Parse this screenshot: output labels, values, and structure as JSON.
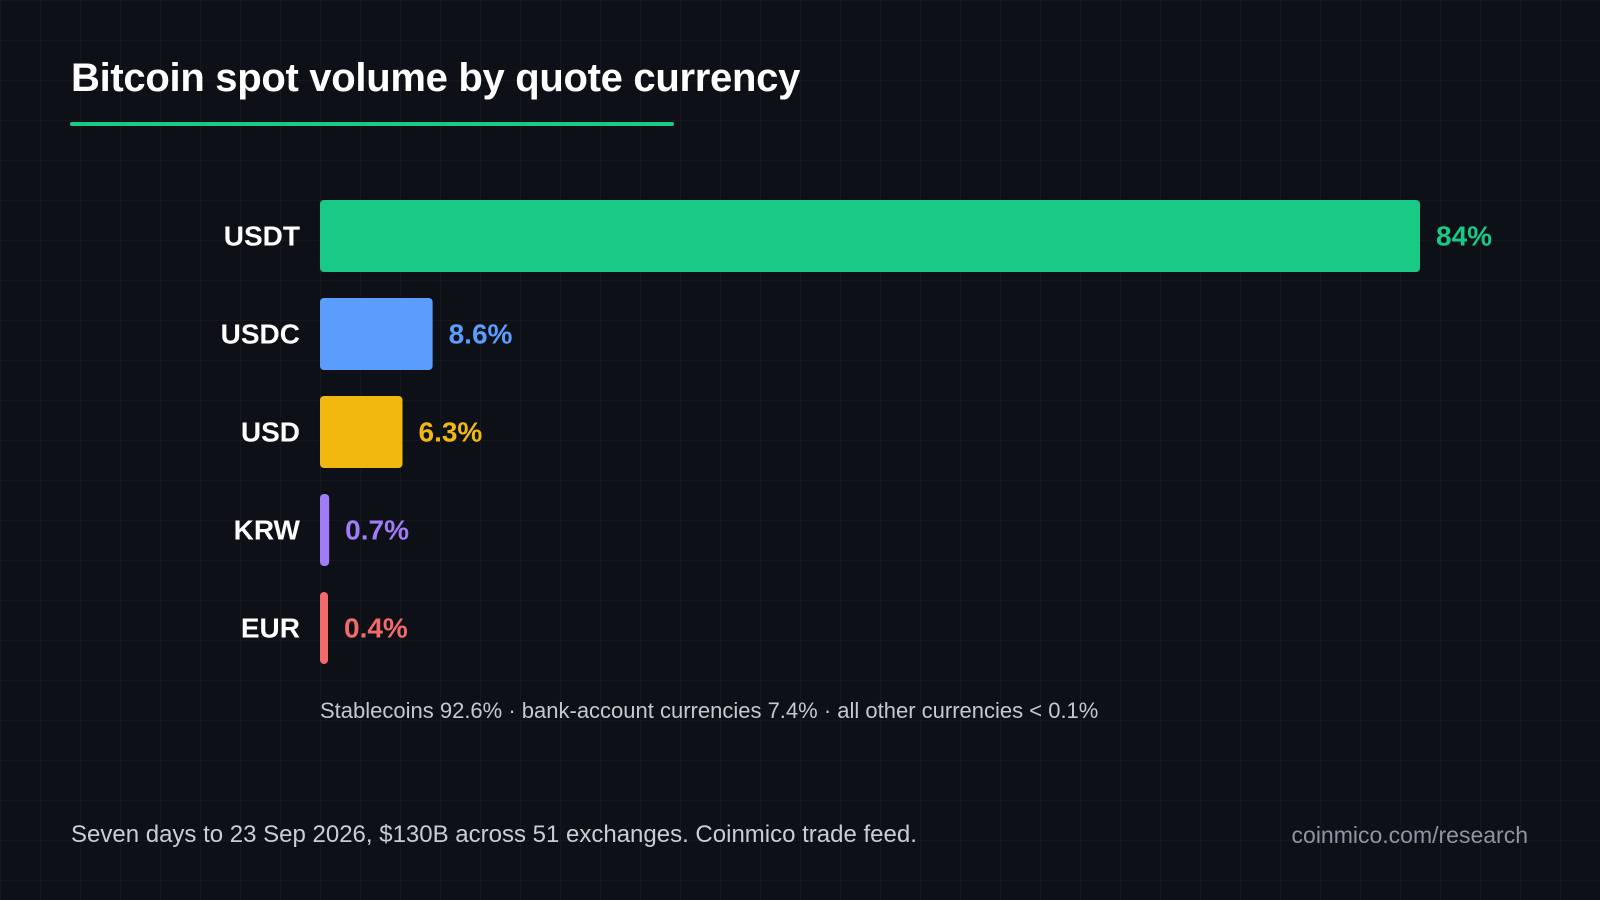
{
  "header": {
    "title": "Bitcoin spot volume by quote currency"
  },
  "chart_data": {
    "type": "bar",
    "orientation": "horizontal",
    "title": "Bitcoin spot volume by quote currency",
    "xlabel": "",
    "ylabel": "",
    "grid": false,
    "xlim": [
      0,
      84
    ],
    "categories": [
      "USDT",
      "USDC",
      "USD",
      "KRW",
      "EUR"
    ],
    "values": [
      84,
      8.6,
      6.3,
      0.7,
      0.4
    ],
    "value_labels": [
      "84%",
      "8.6%",
      "6.3%",
      "0.7%",
      "0.4%"
    ],
    "colors": [
      "#19c986",
      "#5b9dfd",
      "#f1b90f",
      "#a07cf6",
      "#f26b6b"
    ]
  },
  "summary": {
    "text": "Stablecoins 92.6% · bank-account currencies 7.4% · all other currencies < 0.1%"
  },
  "footer": {
    "note": "Seven days to 23 Sep 2026, $130B across 51 exchanges. Coinmico trade feed.",
    "link": "coinmico.com/research"
  }
}
